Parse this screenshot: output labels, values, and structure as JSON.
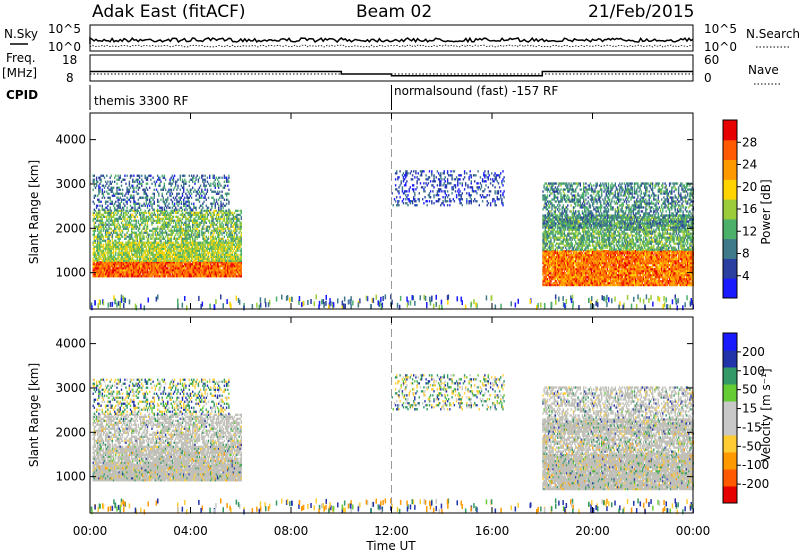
{
  "header": {
    "radar": "Adak East (fitACF)",
    "beam": "Beam 02",
    "date": "21/Feb/2015"
  },
  "panels": {
    "nsky_label": "N.Sky",
    "nsearch_label": "N.Search",
    "freq_label_1": "Freq.",
    "freq_label_2": "[MHz]",
    "nave_label": "Nave",
    "cpid_label": "CPID",
    "cpid_1": "themis 3300 RF",
    "cpid_2": "normalsound (fast) -157 RF"
  },
  "colors": {
    "power_scale": [
      "#1a1aff",
      "#2a3f9f",
      "#3f7a8a",
      "#4caf6a",
      "#9ccc3a",
      "#ffd400",
      "#ff9900",
      "#ff5a00",
      "#e60000"
    ],
    "velocity_scale": [
      "#e60000",
      "#ff5a00",
      "#ff9900",
      "#ffcc33",
      "#c8c8c8",
      "#c8c8c8",
      "#66cc33",
      "#339966",
      "#2233aa",
      "#1a1aff"
    ],
    "ground_gray": "#c0c0b8"
  },
  "chart_data": {
    "type": "heatmap",
    "x": {
      "label": "Time UT",
      "range": [
        0,
        24
      ],
      "ticks": [
        0,
        4,
        8,
        12,
        16,
        20,
        24
      ],
      "tick_labels": [
        "00:00",
        "04:00",
        "08:00",
        "12:00",
        "16:00",
        "20:00",
        "00:00"
      ]
    },
    "nsky": {
      "tick_labels": [
        "10^5",
        "10^0"
      ],
      "right_tick_labels": [
        "10^5",
        "10^0"
      ]
    },
    "freq": {
      "tick_labels": [
        "18",
        "8"
      ],
      "right_tick_labels": [
        "60",
        "0"
      ],
      "segments": [
        {
          "t0": 0,
          "t1": 10,
          "mhz": 13.0
        },
        {
          "t0": 10,
          "t1": 12,
          "mhz": 11.5
        },
        {
          "t0": 12,
          "t1": 18,
          "mhz": 10.5
        },
        {
          "t0": 18,
          "t1": 24,
          "mhz": 13.0
        }
      ]
    },
    "cpid_change_time": 12,
    "power": {
      "ylabel": "Slant Range [km]",
      "ylim": [
        180,
        4600
      ],
      "yticks": [
        1000,
        2000,
        3000,
        4000
      ],
      "colorbar_label": "Power [dB]",
      "colorbar_ticks": [
        "4",
        "8",
        "12",
        "16",
        "20",
        "24",
        "28"
      ],
      "colorbar_range": [
        0,
        32
      ]
    },
    "velocity": {
      "ylabel": "Slant Range [km]",
      "ylim": [
        180,
        4600
      ],
      "yticks": [
        1000,
        2000,
        3000,
        4000
      ],
      "colorbar_label": "Velocity [m s⁻¹]",
      "colorbar_ticks": [
        "200",
        "100",
        "50",
        "15",
        "-15",
        "-50",
        "-100",
        "-200"
      ]
    },
    "scatter_regions": [
      {
        "t0": 0.1,
        "t1": 6.0,
        "r0": 900,
        "r1": 1250,
        "power": 26,
        "vel": 0,
        "density": 0.98,
        "ground": true
      },
      {
        "t0": 0.1,
        "t1": 6.0,
        "r0": 1250,
        "r1": 1700,
        "power": 16,
        "vel": 0,
        "density": 0.85,
        "ground": true
      },
      {
        "t0": 0.1,
        "t1": 6.0,
        "r0": 1700,
        "r1": 2400,
        "power": 14,
        "vel": 5,
        "density": 0.6,
        "ground": true
      },
      {
        "t0": 0.1,
        "t1": 5.5,
        "r0": 2400,
        "r1": 3200,
        "power": 8,
        "vel": 10,
        "density": 0.35,
        "ground": false
      },
      {
        "t0": 12.0,
        "t1": 16.5,
        "r0": 2500,
        "r1": 3300,
        "power": 5,
        "vel": 10,
        "density": 0.25,
        "ground": false
      },
      {
        "t0": 18.0,
        "t1": 24.0,
        "r0": 700,
        "r1": 1500,
        "power": 25,
        "vel": 0,
        "density": 0.95,
        "ground": true
      },
      {
        "t0": 18.0,
        "t1": 24.0,
        "r0": 1500,
        "r1": 2300,
        "power": 13,
        "vel": 0,
        "density": 0.7,
        "ground": true
      },
      {
        "t0": 18.0,
        "t1": 24.0,
        "r0": 2000,
        "r1": 3000,
        "power": 10,
        "vel": 20,
        "density": 0.5,
        "ground": true
      }
    ]
  }
}
